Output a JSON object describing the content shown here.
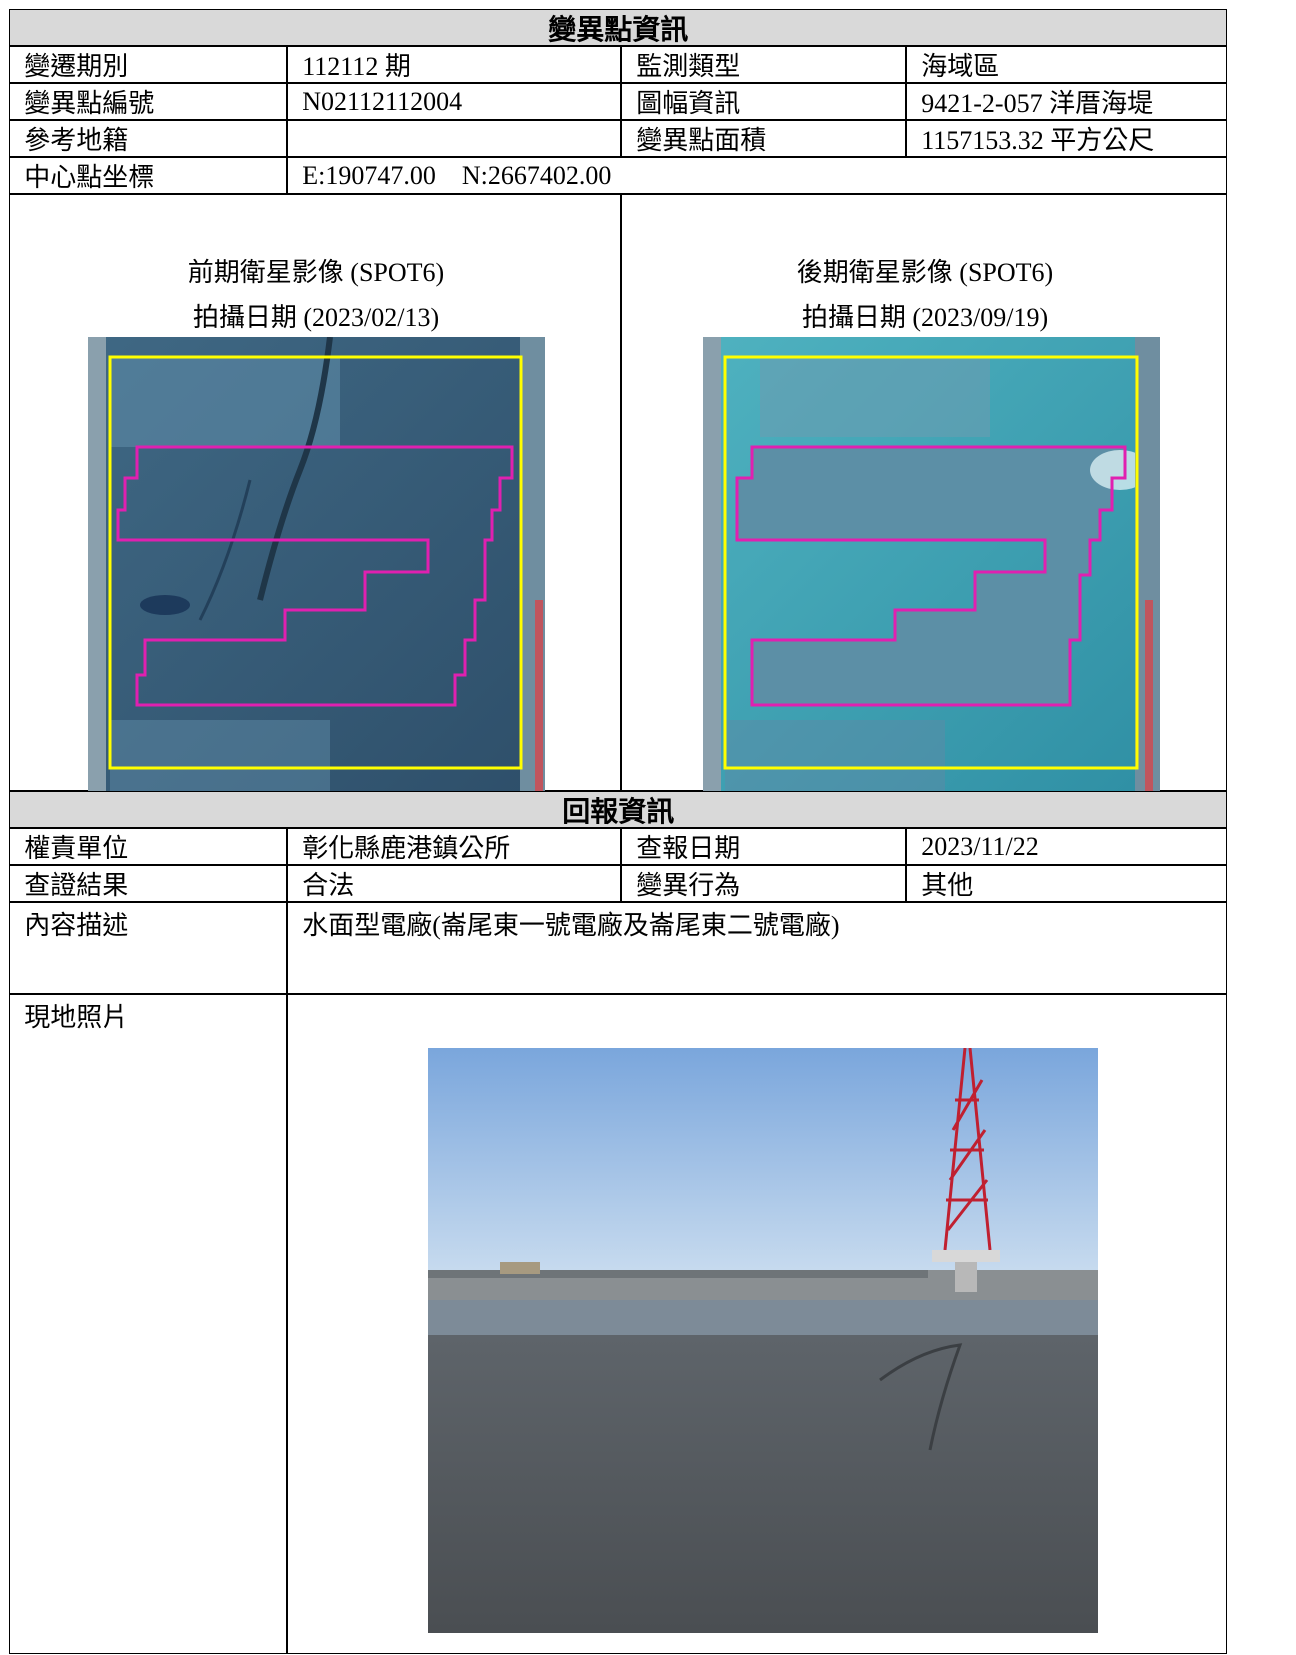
{
  "change_info": {
    "title": "變異點資訊",
    "rows": [
      [
        "變遷期別",
        "112112 期",
        "監測類型",
        "海域區"
      ],
      [
        "變異點編號",
        "N02112112004",
        "圖幅資訊",
        "9421-2-057 洋厝海堤"
      ],
      [
        "參考地籍",
        "",
        "變異點面積",
        "1157153.32 平方公尺"
      ],
      [
        "中心點坐標",
        "E:190747.00    N:2667402.00"
      ]
    ],
    "images": [
      {
        "title": "前期衛星影像 (SPOT6)",
        "date": "拍攝日期 (2023/02/13)"
      },
      {
        "title": "後期衛星影像 (SPOT6)",
        "date": "拍攝日期 (2023/09/19)"
      }
    ]
  },
  "report_info": {
    "title": "回報資訊",
    "rows": [
      [
        "權責單位",
        "彰化縣鹿港鎮公所",
        "查報日期",
        "2023/11/22"
      ],
      [
        "查證結果",
        "合法",
        "變異行為",
        "其他"
      ],
      [
        "內容描述",
        "水面型電廠(崙尾東一號電廠及崙尾東二號電廠)"
      ],
      [
        "現地照片"
      ]
    ]
  }
}
